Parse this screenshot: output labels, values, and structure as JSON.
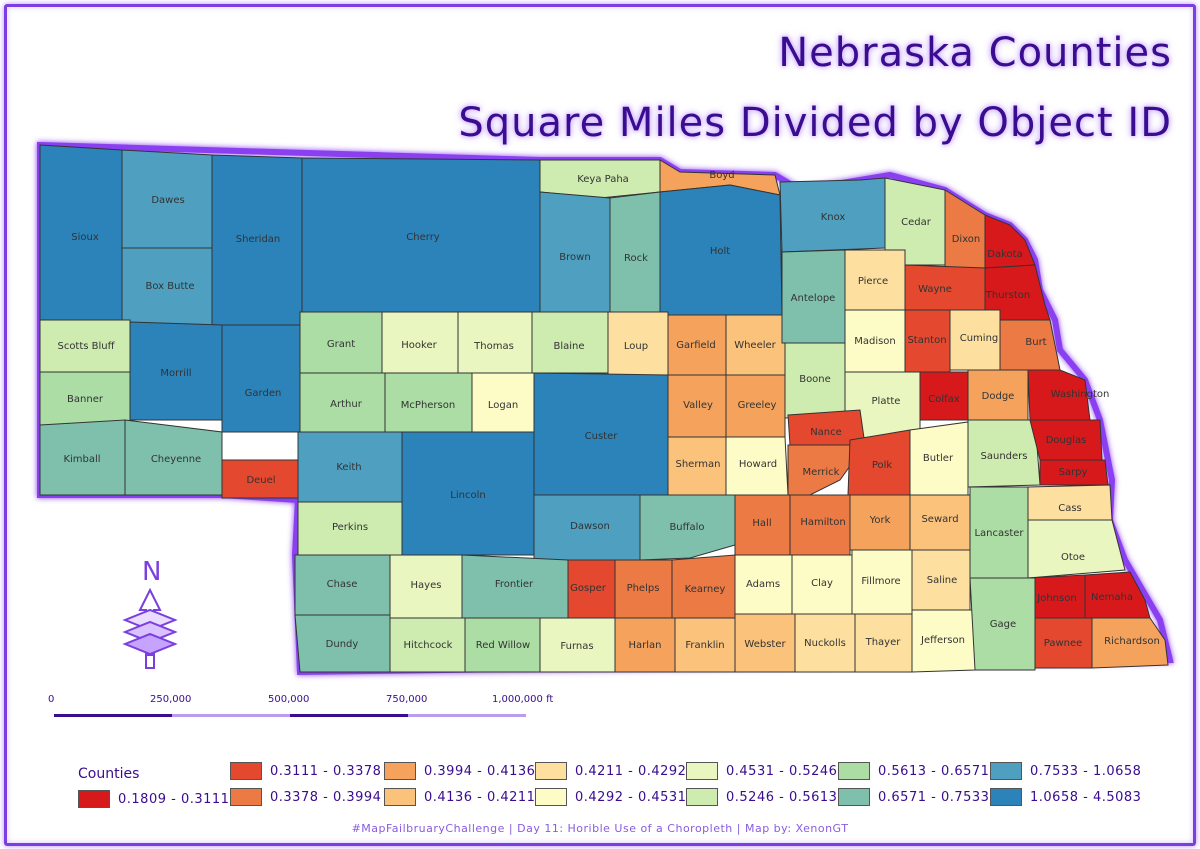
{
  "title": "Nebraska Counties",
  "subtitle": "Square Miles Divided by Object ID",
  "north_label": "N",
  "scale_labels": [
    "0",
    "250,000",
    "500,000",
    "750,000",
    "1,000,000 ft"
  ],
  "legend": {
    "title": "Counties",
    "items": [
      {
        "label": "0.1809 - 0.3111",
        "color": "#d7191c"
      },
      {
        "label": "0.3111 - 0.3378",
        "color": "#e4482f"
      },
      {
        "label": "0.3378 - 0.3994",
        "color": "#ec7a45"
      },
      {
        "label": "0.3994 - 0.4136",
        "color": "#f5a35c"
      },
      {
        "label": "0.4136 - 0.4211",
        "color": "#fbc27c"
      },
      {
        "label": "0.4211 - 0.4292",
        "color": "#fde0a0"
      },
      {
        "label": "0.4292 - 0.4531",
        "color": "#fefcc6"
      },
      {
        "label": "0.4531 - 0.5246",
        "color": "#eaf6bf"
      },
      {
        "label": "0.5246 - 0.5613",
        "color": "#cfecb0"
      },
      {
        "label": "0.5613 - 0.6571",
        "color": "#abdda4"
      },
      {
        "label": "0.6571 - 0.7533",
        "color": "#7fc0ad"
      },
      {
        "label": "0.7533 - 1.0658",
        "color": "#4fa0c0"
      },
      {
        "label": "1.0658 - 4.5083",
        "color": "#2b83ba"
      }
    ]
  },
  "footer": "#MapFailbruaryChallenge  |  Day 11: Horible Use of a Choropleth  |  Map by: XenonGT",
  "counties": [
    {
      "name": "Sioux",
      "cls": 12
    },
    {
      "name": "Dawes",
      "cls": 11
    },
    {
      "name": "Sheridan",
      "cls": 12
    },
    {
      "name": "Cherry",
      "cls": 12
    },
    {
      "name": "Keya Paha",
      "cls": 8
    },
    {
      "name": "Boyd",
      "cls": 3
    },
    {
      "name": "Box Butte",
      "cls": 11
    },
    {
      "name": "Brown",
      "cls": 11
    },
    {
      "name": "Rock",
      "cls": 10
    },
    {
      "name": "Holt",
      "cls": 12
    },
    {
      "name": "Knox",
      "cls": 11
    },
    {
      "name": "Cedar",
      "cls": 8
    },
    {
      "name": "Dixon",
      "cls": 2
    },
    {
      "name": "Dakota",
      "cls": 0
    },
    {
      "name": "Scotts Bluff",
      "cls": 8
    },
    {
      "name": "Morrill",
      "cls": 12
    },
    {
      "name": "Garden",
      "cls": 12
    },
    {
      "name": "Grant",
      "cls": 9
    },
    {
      "name": "Hooker",
      "cls": 7
    },
    {
      "name": "Thomas",
      "cls": 7
    },
    {
      "name": "Blaine",
      "cls": 8
    },
    {
      "name": "Loup",
      "cls": 5
    },
    {
      "name": "Garfield",
      "cls": 3
    },
    {
      "name": "Wheeler",
      "cls": 4
    },
    {
      "name": "Antelope",
      "cls": 10
    },
    {
      "name": "Pierce",
      "cls": 5
    },
    {
      "name": "Wayne",
      "cls": 1
    },
    {
      "name": "Thurston",
      "cls": 0
    },
    {
      "name": "Banner",
      "cls": 9
    },
    {
      "name": "Arthur",
      "cls": 9
    },
    {
      "name": "McPherson",
      "cls": 9
    },
    {
      "name": "Logan",
      "cls": 6
    },
    {
      "name": "Custer",
      "cls": 12
    },
    {
      "name": "Valley",
      "cls": 3
    },
    {
      "name": "Greeley",
      "cls": 3
    },
    {
      "name": "Boone",
      "cls": 8
    },
    {
      "name": "Madison",
      "cls": 6
    },
    {
      "name": "Stanton",
      "cls": 1
    },
    {
      "name": "Cuming",
      "cls": 5
    },
    {
      "name": "Burt",
      "cls": 2
    },
    {
      "name": "Platte",
      "cls": 7
    },
    {
      "name": "Colfax",
      "cls": 0
    },
    {
      "name": "Dodge",
      "cls": 3
    },
    {
      "name": "Washington",
      "cls": 0
    },
    {
      "name": "Kimball",
      "cls": 10
    },
    {
      "name": "Cheyenne",
      "cls": 10
    },
    {
      "name": "Deuel",
      "cls": 1
    },
    {
      "name": "Keith",
      "cls": 11
    },
    {
      "name": "Lincoln",
      "cls": 12
    },
    {
      "name": "Sherman",
      "cls": 4
    },
    {
      "name": "Howard",
      "cls": 6
    },
    {
      "name": "Nance",
      "cls": 1
    },
    {
      "name": "Merrick",
      "cls": 2
    },
    {
      "name": "Polk",
      "cls": 1
    },
    {
      "name": "Butler",
      "cls": 6
    },
    {
      "name": "Saunders",
      "cls": 8
    },
    {
      "name": "Douglas",
      "cls": 0
    },
    {
      "name": "Sarpy",
      "cls": 0
    },
    {
      "name": "Perkins",
      "cls": 8
    },
    {
      "name": "Dawson",
      "cls": 11
    },
    {
      "name": "Buffalo",
      "cls": 10
    },
    {
      "name": "Hall",
      "cls": 2
    },
    {
      "name": "Hamilton",
      "cls": 2
    },
    {
      "name": "York",
      "cls": 3
    },
    {
      "name": "Seward",
      "cls": 4
    },
    {
      "name": "Lancaster",
      "cls": 9
    },
    {
      "name": "Cass",
      "cls": 5
    },
    {
      "name": "Otoe",
      "cls": 7
    },
    {
      "name": "Chase",
      "cls": 10
    },
    {
      "name": "Hayes",
      "cls": 7
    },
    {
      "name": "Frontier",
      "cls": 10
    },
    {
      "name": "Gosper",
      "cls": 1
    },
    {
      "name": "Phelps",
      "cls": 2
    },
    {
      "name": "Kearney",
      "cls": 2
    },
    {
      "name": "Adams",
      "cls": 6
    },
    {
      "name": "Clay",
      "cls": 6
    },
    {
      "name": "Fillmore",
      "cls": 6
    },
    {
      "name": "Saline",
      "cls": 5
    },
    {
      "name": "Johnson",
      "cls": 0
    },
    {
      "name": "Nemaha",
      "cls": 0
    },
    {
      "name": "Dundy",
      "cls": 10
    },
    {
      "name": "Hitchcock",
      "cls": 8
    },
    {
      "name": "Red Willow",
      "cls": 9
    },
    {
      "name": "Furnas",
      "cls": 7
    },
    {
      "name": "Harlan",
      "cls": 3
    },
    {
      "name": "Franklin",
      "cls": 4
    },
    {
      "name": "Webster",
      "cls": 4
    },
    {
      "name": "Nuckolls",
      "cls": 5
    },
    {
      "name": "Thayer",
      "cls": 5
    },
    {
      "name": "Jefferson",
      "cls": 6
    },
    {
      "name": "Gage",
      "cls": 9
    },
    {
      "name": "Pawnee",
      "cls": 1
    },
    {
      "name": "Richardson",
      "cls": 3
    }
  ]
}
